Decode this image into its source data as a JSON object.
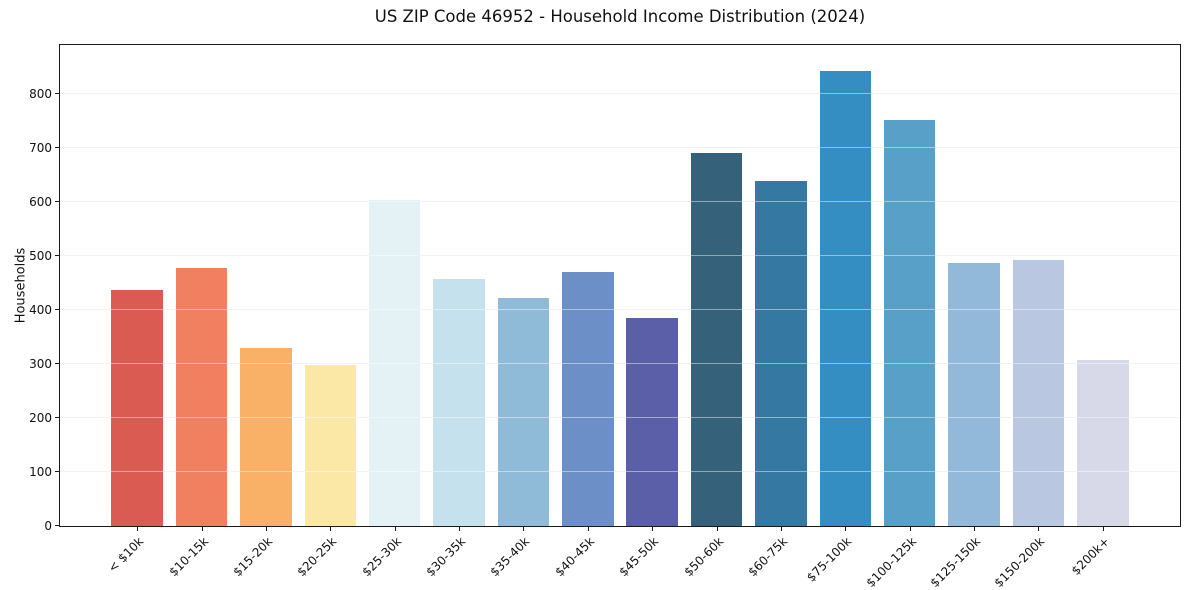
{
  "chart_data": {
    "type": "bar",
    "title": "US ZIP Code 46952 - Household Income Distribution (2024)",
    "ylabel": "Households",
    "xlabel": "",
    "categories": [
      "< $10k",
      "$10-15k",
      "$15-20k",
      "$20-25k",
      "$25-30k",
      "$30-35k",
      "$35-40k",
      "$40-45k",
      "$45-50k",
      "$50-60k",
      "$60-75k",
      "$75-100k",
      "$100-125k",
      "$125-150k",
      "$150-200k",
      "$200k+"
    ],
    "values": [
      437,
      478,
      330,
      299,
      603,
      457,
      423,
      470,
      386,
      691,
      640,
      842,
      752,
      487,
      492,
      307
    ],
    "bar_colors": [
      "#d95b52",
      "#f0805f",
      "#f9b168",
      "#fce8a6",
      "#e4f1f5",
      "#c4e1ed",
      "#8fbad8",
      "#6b8fc6",
      "#5a5fa8",
      "#35617a",
      "#3578a2",
      "#348ec2",
      "#58a0c8",
      "#92b9d9",
      "#b9c7e0",
      "#d8d9e8"
    ],
    "yticks": [
      0,
      100,
      200,
      300,
      400,
      500,
      600,
      700,
      800
    ],
    "ylim": [
      0,
      891
    ],
    "grid": "horizontal",
    "grid_color": "#e9e9e9",
    "axis_color": "#1a1a1a",
    "legend": "none",
    "background": "#ffffff"
  }
}
